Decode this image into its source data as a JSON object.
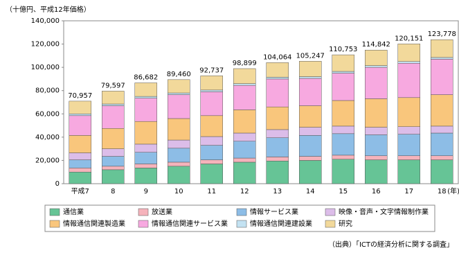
{
  "chart_data": {
    "type": "stacked-bar",
    "y_unit_label": "（十億円、平成12年価格）",
    "x_unit_label": "(年)",
    "source": "（出典）「ICTの経済分析に関する調査」",
    "categories": [
      "平成7",
      "8",
      "9",
      "10",
      "11",
      "12",
      "13",
      "14",
      "15",
      "16",
      "17",
      "18"
    ],
    "series": [
      {
        "name": "通信業",
        "color": "#66c496",
        "values": [
          10000,
          12000,
          13500,
          15000,
          17000,
          18500,
          19500,
          20000,
          21000,
          20500,
          20500,
          20500
        ]
      },
      {
        "name": "放送業",
        "color": "#f5b3bb",
        "values": [
          3500,
          3000,
          3500,
          3500,
          3500,
          3500,
          3500,
          3500,
          3500,
          3500,
          3500,
          3500
        ]
      },
      {
        "name": "情報サービス業",
        "color": "#8dbde6",
        "values": [
          7000,
          8500,
          10000,
          12000,
          12500,
          14500,
          16500,
          18000,
          18500,
          18000,
          18500,
          19500
        ]
      },
      {
        "name": "映像・音声・文字情報制作業",
        "color": "#dcbde9",
        "values": [
          6000,
          6500,
          7000,
          7000,
          7500,
          7000,
          7000,
          7000,
          6500,
          6500,
          6500,
          6000
        ]
      },
      {
        "name": "情報通信関連製造業",
        "color": "#f9c67c",
        "values": [
          15000,
          17500,
          19500,
          18500,
          18000,
          20000,
          19500,
          18500,
          22000,
          24500,
          25000,
          27000
        ]
      },
      {
        "name": "情報通信関連サービス業",
        "color": "#f7a9e0",
        "values": [
          17000,
          19500,
          20000,
          20500,
          20500,
          21000,
          24000,
          23500,
          23500,
          27000,
          29500,
          30500
        ]
      },
      {
        "name": "情報通信関連建設業",
        "color": "#c3e2f2",
        "values": [
          1500,
          1500,
          1500,
          1500,
          1500,
          1500,
          1500,
          1500,
          1500,
          1500,
          1500,
          1500
        ]
      },
      {
        "name": "研究",
        "color": "#f2d99b",
        "values": [
          10957,
          11097,
          11682,
          11460,
          12237,
          12899,
          12564,
          13247,
          14253,
          13342,
          15151,
          15278
        ]
      }
    ],
    "totals": [
      70957,
      79597,
      86682,
      89460,
      92737,
      98899,
      104064,
      105247,
      110753,
      114842,
      120151,
      123778
    ],
    "total_labels": [
      "70,957",
      "79,597",
      "86,682",
      "89,460",
      "92,737",
      "98,899",
      "104,064",
      "105,247",
      "110,753",
      "114,842",
      "120,151",
      "123,778"
    ],
    "ylim": [
      0,
      140000
    ],
    "yticks": [
      {
        "value": 0,
        "label": "0"
      },
      {
        "value": 20000,
        "label": "20,000"
      },
      {
        "value": 40000,
        "label": "40,000"
      },
      {
        "value": 60000,
        "label": "60,000"
      },
      {
        "value": 80000,
        "label": "80,000"
      },
      {
        "value": 100000,
        "label": "100,000"
      },
      {
        "value": 120000,
        "label": "120,000"
      },
      {
        "value": 140000,
        "label": "140,000"
      }
    ]
  }
}
